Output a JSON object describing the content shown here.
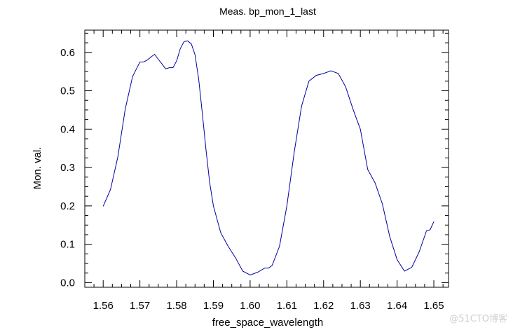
{
  "chart_data": {
    "type": "line",
    "title": "Meas. bp_mon_1_last",
    "xlabel": "free_space_wavelength",
    "ylabel": "Mon. val.",
    "xlim": [
      1.555,
      1.654
    ],
    "ylim": [
      -0.012,
      0.658
    ],
    "x_ticks": [
      1.56,
      1.57,
      1.58,
      1.59,
      1.6,
      1.61,
      1.62,
      1.63,
      1.64,
      1.65
    ],
    "x_tick_labels": [
      "1.56",
      "1.57",
      "1.58",
      "1.59",
      "1.60",
      "1.61",
      "1.62",
      "1.63",
      "1.64",
      "1.65"
    ],
    "y_ticks": [
      0.0,
      0.1,
      0.2,
      0.3,
      0.4,
      0.5,
      0.6
    ],
    "y_tick_labels": [
      "0.0",
      "0.1",
      "0.2",
      "0.3",
      "0.4",
      "0.5",
      "0.6"
    ],
    "grid": false,
    "line_color": "#0000a0",
    "series": [
      {
        "x": [
          1.56,
          1.562,
          1.564,
          1.566,
          1.568,
          1.57,
          1.571,
          1.572,
          1.573,
          1.574,
          1.575,
          1.576,
          1.577,
          1.578,
          1.579,
          1.58,
          1.581,
          1.582,
          1.583,
          1.584,
          1.585,
          1.586,
          1.587,
          1.588,
          1.589,
          1.59,
          1.592,
          1.594,
          1.596,
          1.598,
          1.6,
          1.602,
          1.604,
          1.605,
          1.606,
          1.608,
          1.61,
          1.612,
          1.614,
          1.616,
          1.618,
          1.62,
          1.622,
          1.624,
          1.626,
          1.628,
          1.63,
          1.632,
          1.634,
          1.636,
          1.638,
          1.64,
          1.642,
          1.644,
          1.646,
          1.648,
          1.649,
          1.65
        ],
        "y": [
          0.199,
          0.243,
          0.328,
          0.452,
          0.537,
          0.575,
          0.575,
          0.58,
          0.588,
          0.595,
          0.582,
          0.57,
          0.557,
          0.56,
          0.56,
          0.578,
          0.61,
          0.628,
          0.63,
          0.622,
          0.594,
          0.53,
          0.44,
          0.345,
          0.26,
          0.2,
          0.13,
          0.095,
          0.065,
          0.03,
          0.02,
          0.027,
          0.038,
          0.038,
          0.045,
          0.095,
          0.2,
          0.34,
          0.46,
          0.525,
          0.54,
          0.545,
          0.552,
          0.545,
          0.51,
          0.452,
          0.4,
          0.295,
          0.26,
          0.205,
          0.12,
          0.06,
          0.03,
          0.04,
          0.08,
          0.135,
          0.138,
          0.159
        ]
      }
    ]
  },
  "watermark": "@51CTO博客"
}
